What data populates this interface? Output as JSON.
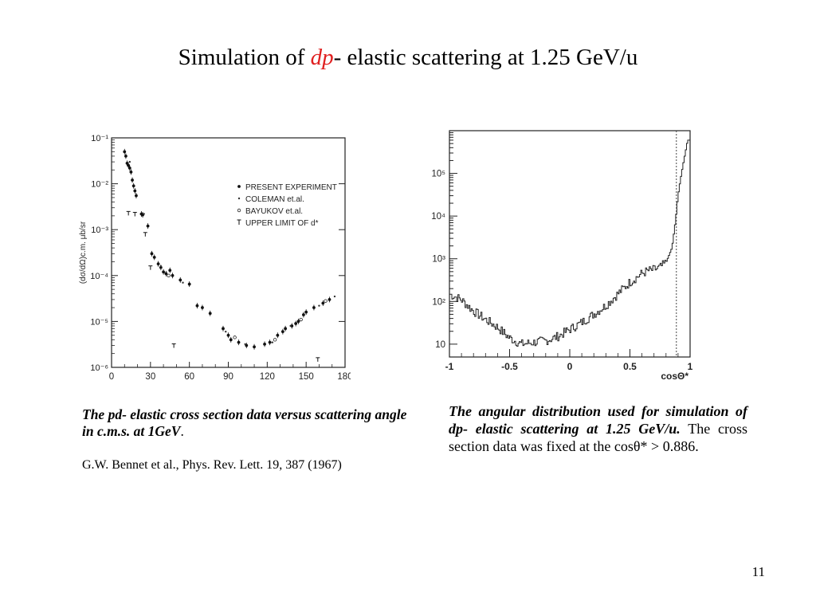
{
  "slide": {
    "title_pre": "Simulation of ",
    "title_red": "dp",
    "title_post": "- elastic scattering at 1.25 GeV/u",
    "page_number": "11"
  },
  "caption_left": {
    "text": "The pd- elastic cross section data versus scattering angle in c.m.s. at 1GeV",
    "period": "."
  },
  "reference": "G.W. Bennet et al., Phys. Rev. Lett. 19, 387 (1967)",
  "caption_right": {
    "bold": "The angular distribution used for simulation of dp- elastic scattering at 1.25 GeV/u.",
    "normal": " The cross section data was fixed at the  cosθ* > 0.886."
  },
  "chart_data": [
    {
      "type": "scatter",
      "title": "",
      "xlabel": "",
      "ylabel": "(dσ/dΩ)c.m. μb/sr",
      "xlim": [
        0,
        180
      ],
      "ylim": [
        1e-06,
        0.1
      ],
      "yscale": "log",
      "x_ticks": [
        "0",
        "30",
        "60",
        "90",
        "120",
        "150",
        "180"
      ],
      "y_ticks": [
        "10⁻⁶",
        "10⁻⁵",
        "10⁻⁴",
        "10⁻³",
        "10⁻²",
        "10⁻¹"
      ],
      "legend_position": "top-right",
      "series": [
        {
          "name": "PRESENT EXPERIMENT",
          "marker": "filled-circle",
          "points": [
            [
              10,
              0.05
            ],
            [
              11,
              0.04
            ],
            [
              12,
              0.028
            ],
            [
              13,
              0.025
            ],
            [
              14,
              0.022
            ],
            [
              15,
              0.018
            ],
            [
              16,
              0.012
            ],
            [
              17,
              0.009
            ],
            [
              18,
              0.007
            ],
            [
              19,
              0.0055
            ],
            [
              23,
              0.0022
            ],
            [
              24,
              0.0021
            ],
            [
              28,
              0.0012
            ],
            [
              31,
              0.0003
            ],
            [
              33,
              0.00025
            ],
            [
              36,
              0.00018
            ],
            [
              38,
              0.00015
            ],
            [
              40,
              0.00012
            ],
            [
              42,
              0.00011
            ],
            [
              45,
              0.00013
            ],
            [
              47,
              0.0001
            ],
            [
              53,
              8e-05
            ],
            [
              60,
              6.5e-05
            ],
            [
              66,
              2.2e-05
            ],
            [
              70,
              2e-05
            ],
            [
              76,
              1.5e-05
            ],
            [
              86,
              7e-06
            ],
            [
              90,
              5e-06
            ],
            [
              92,
              4e-06
            ],
            [
              98,
              3.5e-06
            ],
            [
              104,
              3e-06
            ],
            [
              110,
              2.8e-06
            ],
            [
              118,
              3.2e-06
            ],
            [
              122,
              3.5e-06
            ],
            [
              128,
              5e-06
            ],
            [
              132,
              6e-06
            ],
            [
              134,
              7e-06
            ],
            [
              139,
              8e-06
            ],
            [
              142,
              9e-06
            ],
            [
              144,
              1e-05
            ],
            [
              148,
              1.4e-05
            ],
            [
              150,
              1.6e-05
            ],
            [
              156,
              2e-05
            ],
            [
              163,
              2.5e-05
            ],
            [
              168,
              3e-05
            ]
          ]
        },
        {
          "name": "COLEMAN et.al.",
          "marker": "small-dot",
          "points": [
            [
              14,
              0.03
            ],
            [
              25,
              0.0022
            ],
            [
              38,
              0.00016
            ],
            [
              55,
              7e-05
            ],
            [
              88,
              6e-06
            ],
            [
              103,
              3.2e-06
            ],
            [
              124,
              3.5e-06
            ],
            [
              138,
              8e-06
            ],
            [
              160,
              2.2e-05
            ],
            [
              172,
              3.5e-05
            ]
          ]
        },
        {
          "name": "BAYUKOV et.al.",
          "marker": "open-circle",
          "points": [
            [
              44,
              0.0001
            ],
            [
              95,
              4.5e-06
            ],
            [
              126,
              4e-06
            ],
            [
              146,
              1.1e-05
            ],
            [
              165,
              2.8e-05
            ]
          ]
        },
        {
          "name": "UPPER LIMIT OF d*",
          "marker": "upper-limit",
          "points": [
            [
              13,
              0.0023
            ],
            [
              18,
              0.0022
            ],
            [
              26,
              0.0008
            ],
            [
              30,
              0.00015
            ],
            [
              48,
              3e-06
            ],
            [
              159,
              1.5e-06
            ]
          ]
        }
      ]
    },
    {
      "type": "line",
      "title": "",
      "xlabel": "cosΘ*",
      "ylabel": "",
      "xlim": [
        -1,
        1
      ],
      "ylim": [
        5,
        1000000
      ],
      "yscale": "log",
      "x_ticks": [
        "-1",
        "-0.5",
        "0",
        "0.5",
        "1"
      ],
      "y_ticks": [
        "10",
        "10²",
        "10³",
        "10⁴",
        "10⁵"
      ],
      "cut_line": 0.886,
      "histogram": "step",
      "x": [
        -1,
        -0.9,
        -0.8,
        -0.7,
        -0.6,
        -0.5,
        -0.4,
        -0.3,
        -0.2,
        -0.1,
        0,
        0.1,
        0.2,
        0.3,
        0.4,
        0.5,
        0.6,
        0.65,
        0.7,
        0.75,
        0.8,
        0.85,
        0.88,
        0.9,
        0.92,
        0.94,
        0.96,
        0.98,
        1.0
      ],
      "values": [
        150,
        110,
        60,
        38,
        25,
        14,
        10,
        11,
        12,
        15,
        22,
        32,
        50,
        80,
        150,
        280,
        450,
        520,
        550,
        620,
        800,
        1800,
        8000,
        30000,
        70000,
        150000,
        300000,
        600000,
        600000
      ]
    }
  ]
}
